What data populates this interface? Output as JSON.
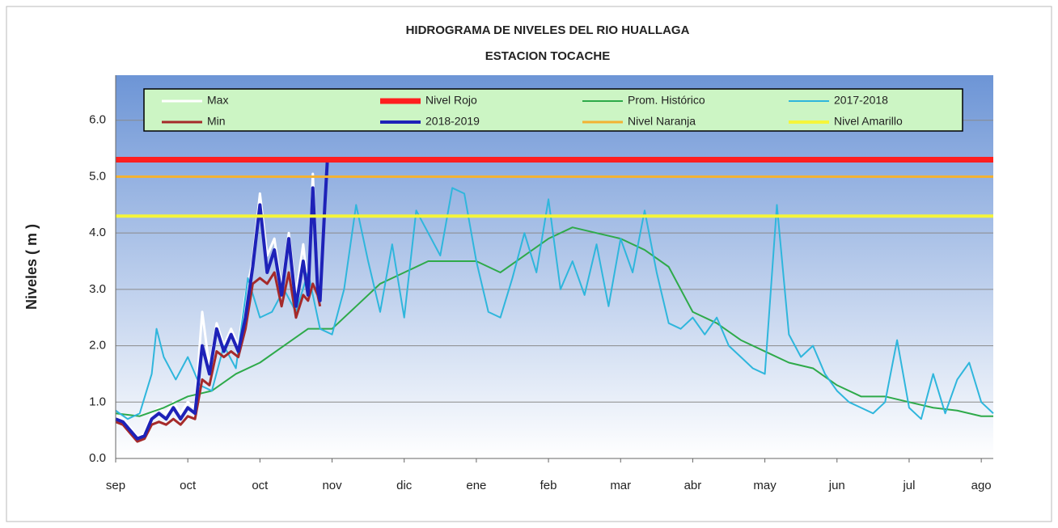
{
  "chart_data": {
    "type": "line",
    "title": "HIDROGRAMA DE NIVELES DEL RIO HUALLAGA",
    "subtitle": "ESTACION TOCACHE",
    "y_label": "Niveles ( m )",
    "xlim": [
      0,
      365
    ],
    "xticks": [
      {
        "value": 0,
        "label": "sep"
      },
      {
        "value": 30,
        "label": "oct"
      },
      {
        "value": 60,
        "label": "oct"
      },
      {
        "value": 90,
        "label": "nov"
      },
      {
        "value": 120,
        "label": "dic"
      },
      {
        "value": 150,
        "label": "ene"
      },
      {
        "value": 180,
        "label": "feb"
      },
      {
        "value": 210,
        "label": "mar"
      },
      {
        "value": 240,
        "label": "abr"
      },
      {
        "value": 270,
        "label": "may"
      },
      {
        "value": 300,
        "label": "jun"
      },
      {
        "value": 330,
        "label": "jul"
      },
      {
        "value": 360,
        "label": "ago"
      }
    ],
    "ylim": [
      0,
      6.8
    ],
    "yticks": [
      {
        "value": 0,
        "label": "0.0"
      },
      {
        "value": 1,
        "label": "1.0"
      },
      {
        "value": 2,
        "label": "2.0"
      },
      {
        "value": 3,
        "label": "3.0"
      },
      {
        "value": 4,
        "label": "4.0"
      },
      {
        "value": 5,
        "label": "5.0"
      },
      {
        "value": 6,
        "label": "6.0"
      }
    ],
    "grid": true,
    "legend": "top",
    "series": [
      {
        "name": "Max",
        "color": "#ffffff",
        "width": 3,
        "x": [
          0,
          3,
          6,
          9,
          12,
          15,
          18,
          21,
          24,
          27,
          30,
          33,
          36,
          39,
          42,
          45,
          48,
          51,
          54,
          57,
          60,
          63,
          66,
          69,
          72,
          75,
          78,
          80,
          82,
          84,
          85
        ],
        "values": [
          0.75,
          0.7,
          0.55,
          0.4,
          0.45,
          0.8,
          0.9,
          0.8,
          1.0,
          0.8,
          1.0,
          0.9,
          2.6,
          1.6,
          2.4,
          2.0,
          2.3,
          2.0,
          2.9,
          3.5,
          4.7,
          3.6,
          3.9,
          3.0,
          4.0,
          2.9,
          3.8,
          3.0,
          5.05,
          3.1,
          2.9
        ]
      },
      {
        "name": "Nivel Rojo",
        "color": "#ff1f1f",
        "width": 7,
        "x": [
          0,
          365
        ],
        "values": [
          5.3,
          5.3
        ]
      },
      {
        "name": "Prom. Histórico",
        "color": "#2eaa4a",
        "width": 2,
        "x": [
          0,
          10,
          20,
          30,
          40,
          50,
          60,
          70,
          80,
          90,
          100,
          110,
          120,
          130,
          140,
          150,
          160,
          170,
          180,
          190,
          200,
          210,
          220,
          230,
          240,
          250,
          260,
          270,
          280,
          290,
          300,
          310,
          320,
          330,
          340,
          350,
          360,
          365
        ],
        "values": [
          0.8,
          0.75,
          0.9,
          1.1,
          1.2,
          1.5,
          1.7,
          2.0,
          2.3,
          2.3,
          2.7,
          3.1,
          3.3,
          3.5,
          3.5,
          3.5,
          3.3,
          3.6,
          3.9,
          4.1,
          4.0,
          3.9,
          3.7,
          3.4,
          2.6,
          2.4,
          2.1,
          1.9,
          1.7,
          1.6,
          1.3,
          1.1,
          1.1,
          1.0,
          0.9,
          0.85,
          0.75,
          0.75
        ]
      },
      {
        "name": "2017-2018",
        "color": "#2fb6dc",
        "width": 2,
        "x": [
          0,
          5,
          10,
          15,
          17,
          20,
          25,
          30,
          35,
          40,
          45,
          50,
          55,
          60,
          65,
          70,
          75,
          80,
          85,
          90,
          95,
          100,
          105,
          110,
          115,
          120,
          125,
          130,
          135,
          140,
          145,
          150,
          155,
          160,
          165,
          170,
          175,
          180,
          185,
          190,
          195,
          200,
          205,
          210,
          215,
          220,
          225,
          230,
          235,
          240,
          245,
          250,
          255,
          260,
          265,
          270,
          275,
          280,
          285,
          290,
          295,
          300,
          305,
          310,
          315,
          320,
          325,
          330,
          335,
          340,
          345,
          350,
          355,
          360,
          365
        ],
        "values": [
          0.85,
          0.7,
          0.8,
          1.5,
          2.3,
          1.8,
          1.4,
          1.8,
          1.3,
          1.2,
          2.0,
          1.6,
          3.2,
          2.5,
          2.6,
          3.0,
          2.6,
          3.3,
          2.3,
          2.2,
          3.0,
          4.5,
          3.5,
          2.6,
          3.8,
          2.5,
          4.4,
          4.0,
          3.6,
          4.8,
          4.7,
          3.5,
          2.6,
          2.5,
          3.2,
          4.0,
          3.3,
          4.6,
          3.0,
          3.5,
          2.9,
          3.8,
          2.7,
          3.9,
          3.3,
          4.4,
          3.3,
          2.4,
          2.3,
          2.5,
          2.2,
          2.5,
          2.0,
          1.8,
          1.6,
          1.5,
          4.5,
          2.2,
          1.8,
          2.0,
          1.5,
          1.2,
          1.0,
          0.9,
          0.8,
          1.0,
          2.1,
          0.9,
          0.7,
          1.5,
          0.8,
          1.4,
          1.7,
          1.0,
          0.8
        ]
      },
      {
        "name": "Min",
        "color": "#a52a2a",
        "width": 3,
        "x": [
          0,
          3,
          6,
          9,
          12,
          15,
          18,
          21,
          24,
          27,
          30,
          33,
          36,
          39,
          42,
          45,
          48,
          51,
          54,
          57,
          60,
          63,
          66,
          69,
          72,
          75,
          78,
          80,
          82,
          84,
          85
        ],
        "values": [
          0.65,
          0.6,
          0.45,
          0.3,
          0.35,
          0.6,
          0.65,
          0.6,
          0.7,
          0.6,
          0.75,
          0.7,
          1.4,
          1.3,
          1.9,
          1.8,
          1.9,
          1.8,
          2.3,
          3.1,
          3.2,
          3.1,
          3.3,
          2.7,
          3.3,
          2.5,
          2.9,
          2.8,
          3.1,
          2.9,
          2.7
        ]
      },
      {
        "name": "2018-2019",
        "color": "#1e22b8",
        "width": 4,
        "x": [
          0,
          3,
          6,
          9,
          12,
          15,
          18,
          21,
          24,
          27,
          30,
          33,
          36,
          39,
          42,
          45,
          48,
          51,
          54,
          57,
          60,
          63,
          66,
          69,
          72,
          75,
          78,
          80,
          82,
          84,
          85,
          87,
          88
        ],
        "values": [
          0.7,
          0.65,
          0.5,
          0.35,
          0.4,
          0.7,
          0.8,
          0.7,
          0.9,
          0.7,
          0.9,
          0.8,
          2.0,
          1.5,
          2.3,
          1.9,
          2.2,
          1.9,
          2.5,
          3.4,
          4.5,
          3.3,
          3.7,
          2.9,
          3.9,
          2.7,
          3.5,
          2.9,
          4.8,
          3.0,
          2.8,
          4.5,
          5.25
        ]
      },
      {
        "name": "Nivel Naranja",
        "color": "#f2b233",
        "width": 3,
        "x": [
          0,
          365
        ],
        "values": [
          5.0,
          5.0
        ]
      },
      {
        "name": "Nivel Amarillo",
        "color": "#f5f53a",
        "width": 4,
        "x": [
          0,
          365
        ],
        "values": [
          4.3,
          4.3
        ]
      }
    ]
  }
}
